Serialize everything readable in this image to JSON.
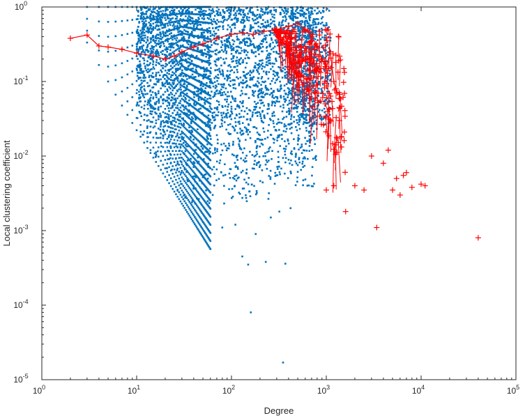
{
  "chart_data": {
    "type": "scatter",
    "title": "",
    "xlabel": "Degree",
    "ylabel": "Local clustering coefficient",
    "xscale": "log",
    "yscale": "log",
    "xlim": [
      1,
      100000
    ],
    "ylim": [
      1e-05,
      1
    ],
    "grid": false,
    "legend": "none",
    "x_ticks": [
      {
        "base": "10",
        "exp": "0"
      },
      {
        "base": "10",
        "exp": "1"
      },
      {
        "base": "10",
        "exp": "2"
      },
      {
        "base": "10",
        "exp": "3"
      },
      {
        "base": "10",
        "exp": "4"
      },
      {
        "base": "10",
        "exp": "5"
      }
    ],
    "y_ticks": [
      {
        "base": "10",
        "exp": "0"
      },
      {
        "base": "10",
        "exp": "-1"
      },
      {
        "base": "10",
        "exp": "-2"
      },
      {
        "base": "10",
        "exp": "-3"
      },
      {
        "base": "10",
        "exp": "-4"
      },
      {
        "base": "10",
        "exp": "-5"
      }
    ],
    "series": [
      {
        "color": "#0072BD",
        "marker": "dot",
        "points_note_outliers": [
          [
            160,
            8e-05
          ],
          [
            350,
            1.7e-05
          ],
          [
            130,
            0.00045
          ],
          [
            150,
            0.00035
          ],
          [
            230,
            0.00038
          ],
          [
            370,
            0.00036
          ],
          [
            50,
            0.0013
          ],
          [
            80,
            0.0011
          ],
          [
            110,
            0.0012
          ],
          [
            180,
            0.0009
          ],
          [
            260,
            0.0015
          ],
          [
            320,
            0.0018
          ],
          [
            420,
            0.002
          ]
        ]
      },
      {
        "color": "#FF0000",
        "marker": "plus-line",
        "mean_curve": [
          [
            2,
            0.38
          ],
          [
            3,
            0.42
          ],
          [
            4,
            0.3
          ],
          [
            5,
            0.29
          ],
          [
            7,
            0.27
          ],
          [
            10,
            0.24
          ],
          [
            15,
            0.22
          ],
          [
            20,
            0.2
          ],
          [
            25,
            0.22
          ],
          [
            30,
            0.25
          ],
          [
            40,
            0.29
          ],
          [
            50,
            0.32
          ],
          [
            70,
            0.38
          ],
          [
            100,
            0.43
          ],
          [
            130,
            0.45
          ],
          [
            170,
            0.43
          ],
          [
            220,
            0.47
          ],
          [
            300,
            0.5
          ],
          [
            400,
            0.55
          ],
          [
            500,
            0.6
          ],
          [
            600,
            0.5
          ],
          [
            700,
            0.4
          ],
          [
            800,
            0.3
          ],
          [
            900,
            0.2
          ],
          [
            1000,
            0.15
          ],
          [
            1100,
            0.25
          ],
          [
            1200,
            0.1
          ],
          [
            1300,
            0.07
          ]
        ],
        "outliers": [
          [
            3400,
            0.0011
          ],
          [
            40000,
            0.0008
          ],
          [
            1600,
            0.0018
          ],
          [
            1000,
            0.0035
          ],
          [
            1200,
            0.004
          ],
          [
            2000,
            0.004
          ],
          [
            2500,
            0.0035
          ],
          [
            5000,
            0.0035
          ],
          [
            6000,
            0.003
          ],
          [
            8000,
            0.0038
          ],
          [
            10000,
            0.0042
          ],
          [
            11000,
            0.004
          ],
          [
            7000,
            0.006
          ],
          [
            5500,
            0.005
          ],
          [
            4000,
            0.008
          ],
          [
            3000,
            0.01
          ],
          [
            6500,
            0.0055
          ],
          [
            4500,
            0.012
          ]
        ]
      }
    ]
  }
}
